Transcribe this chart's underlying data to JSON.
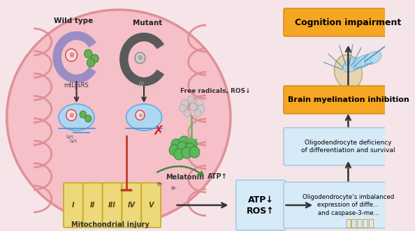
{
  "background_color": "#f5e5e8",
  "fig_width": 5.94,
  "fig_height": 3.31,
  "dpi": 100,
  "wild_type_label": "Wild type",
  "mutant_label": "Mutant",
  "mtlysrs_label": "mtLysRS",
  "free_radicals_label": "Free radicals, ROS↓",
  "melatonin_label": "Melatonin",
  "atp_up_label": "ATP↑",
  "mitochondrial_injury_label": "Mitochondrial injury",
  "atp_down_ros_label": "ATP↓\nROS↑",
  "oligo_imbalanced_label": "Oligodendrocyte's imbalanced\nexpression of diffe...\nand caspase-3-me...",
  "oligo_deficiency_label": "Oligodendrocyte deficiency\nof differentiation and survival",
  "brain_myelin_label": "Brain myelination inhibition",
  "cognition_label": "Cognition impairment",
  "orange_box_color": "#F5A623",
  "orange_box_edge": "#D4911A",
  "blue_box_color": "#D6EAF8",
  "blue_box_edge": "#A9CCE3",
  "watermark_text": "新世纪手游",
  "watermark_color": "#cc8800",
  "roman_labels": [
    "I",
    "II",
    "III",
    "IV",
    "V"
  ],
  "yellow_block_color": "#EDD87A",
  "yellow_block_edge": "#C8A820",
  "mito_color": "#f5c0c8",
  "mito_edge": "#e09098"
}
